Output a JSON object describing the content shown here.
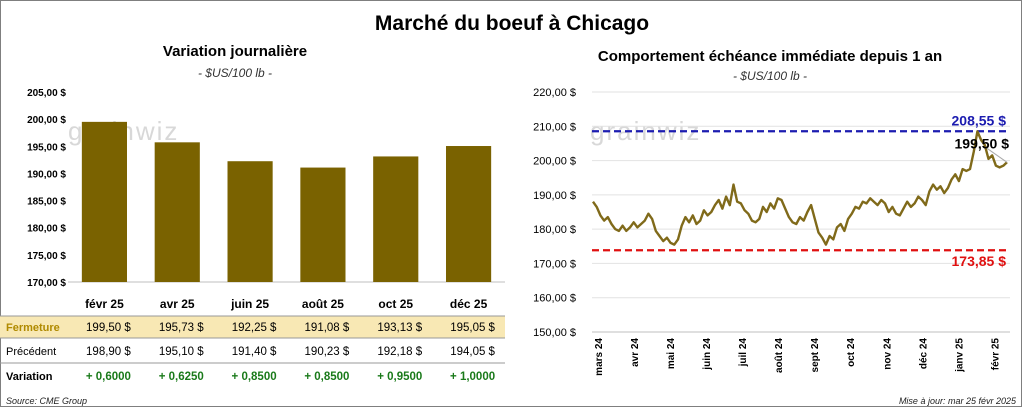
{
  "title": "Marché du boeuf à Chicago",
  "source": "Source: CME Group",
  "updated": "Mise à jour: mar 25 févr 2025",
  "watermark": "grainwiz",
  "colors": {
    "bar": "#7a6200",
    "line": "#806a1a",
    "high": "#1c1cb0",
    "low": "#e01010",
    "fermeture_bg": "#f8e8b4",
    "positive": "#1a7a1a"
  },
  "chart_data": [
    {
      "type": "bar",
      "title": "Variation journalière",
      "subtitle": "- $US/100 lb -",
      "categories": [
        "févr 25",
        "avr 25",
        "juin 25",
        "août 25",
        "oct 25",
        "déc 25"
      ],
      "values": [
        199.5,
        195.73,
        192.25,
        191.08,
        193.13,
        195.05
      ],
      "ylim": [
        170,
        205
      ],
      "yticks": [
        "170,00 $",
        "175,00 $",
        "180,00 $",
        "185,00 $",
        "190,00 $",
        "195,00 $",
        "200,00 $",
        "205,00 $"
      ],
      "table": {
        "rows": [
          {
            "label": "Fermeture",
            "values": [
              "199,50 $",
              "195,73 $",
              "192,25 $",
              "191,08 $",
              "193,13 $",
              "195,05 $"
            ]
          },
          {
            "label": "Précédent",
            "values": [
              "198,90 $",
              "195,10 $",
              "191,40 $",
              "190,23 $",
              "192,18 $",
              "194,05 $"
            ]
          },
          {
            "label": "Variation",
            "values": [
              "+ 0,6000",
              "+ 0,6250",
              "+ 0,8500",
              "+ 0,8500",
              "+ 0,9500",
              "+ 1,0000"
            ]
          }
        ]
      }
    },
    {
      "type": "line",
      "title": "Comportement échéance immédiate depuis 1 an",
      "subtitle": "- $US/100 lb -",
      "ylim": [
        150,
        220
      ],
      "yticks": [
        "150,00 $",
        "160,00 $",
        "170,00 $",
        "180,00 $",
        "190,00 $",
        "200,00 $",
        "210,00 $",
        "220,00 $"
      ],
      "xticks": [
        "mars 24",
        "avr 24",
        "mai 24",
        "juin 24",
        "juil 24",
        "août 24",
        "sept 24",
        "oct 24",
        "nov 24",
        "déc 24",
        "janv 25",
        "févr 25"
      ],
      "high": {
        "value": 208.55,
        "label": "208,55 $"
      },
      "low": {
        "value": 173.85,
        "label": "173,85 $"
      },
      "last": {
        "value": 199.5,
        "label": "199,50 $"
      },
      "values": [
        188.0,
        186.5,
        184.0,
        182.5,
        183.5,
        181.5,
        180.0,
        179.5,
        181.0,
        179.5,
        180.5,
        182.0,
        180.5,
        181.5,
        182.5,
        184.5,
        183.0,
        179.5,
        178.0,
        176.5,
        177.5,
        176.0,
        175.5,
        177.0,
        181.0,
        183.5,
        182.0,
        184.0,
        181.5,
        182.5,
        185.5,
        184.0,
        185.0,
        187.0,
        188.5,
        186.0,
        189.5,
        187.0,
        193.0,
        188.0,
        187.5,
        185.5,
        184.5,
        182.5,
        182.0,
        183.0,
        186.5,
        185.0,
        187.5,
        186.0,
        189.0,
        188.5,
        186.0,
        183.5,
        182.0,
        181.5,
        183.5,
        182.5,
        185.0,
        187.0,
        183.0,
        179.0,
        177.5,
        175.5,
        178.0,
        177.0,
        180.5,
        181.5,
        179.5,
        183.0,
        184.5,
        186.5,
        186.0,
        188.0,
        187.5,
        189.0,
        188.0,
        187.0,
        188.5,
        187.5,
        185.0,
        186.5,
        184.5,
        184.0,
        186.0,
        188.0,
        186.5,
        187.5,
        189.5,
        188.5,
        187.0,
        191.0,
        193.0,
        191.5,
        192.5,
        190.5,
        192.0,
        194.5,
        196.0,
        194.0,
        197.5,
        197.0,
        197.5,
        202.5,
        208.5,
        206.0,
        204.5,
        200.5,
        201.5,
        198.5,
        198.0,
        198.5,
        199.5
      ]
    }
  ]
}
